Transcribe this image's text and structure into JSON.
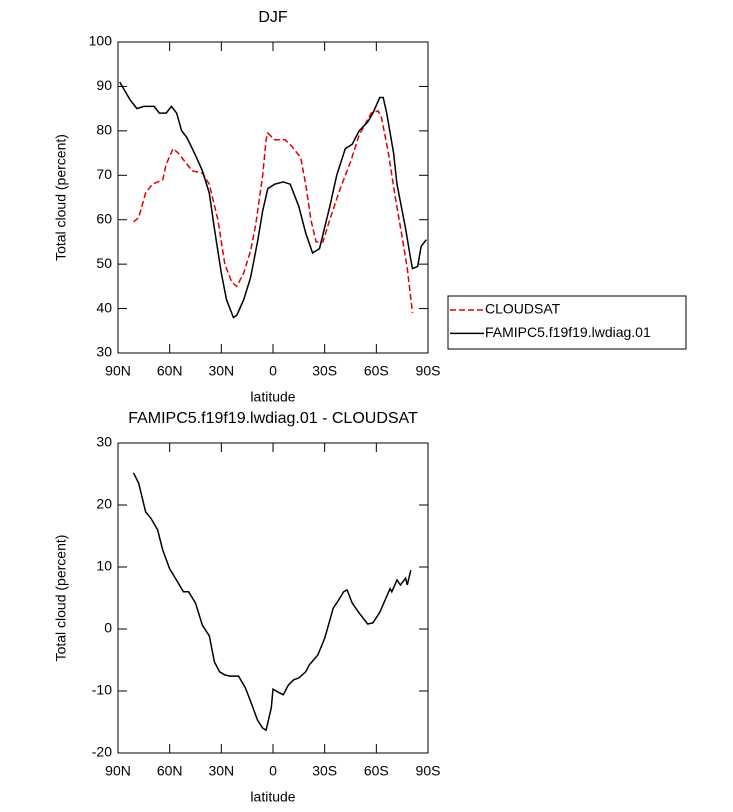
{
  "chart_data": [
    {
      "type": "line",
      "title": "DJF",
      "ylabel": "Total cloud (percent)",
      "xlabel": "latitude",
      "xlim": [
        90,
        -90
      ],
      "xticks": [
        {
          "value": 90,
          "label": "90N"
        },
        {
          "value": 60,
          "label": "60N"
        },
        {
          "value": 30,
          "label": "30N"
        },
        0,
        {
          "value": -30,
          "label": "30S"
        },
        {
          "value": -60,
          "label": "60S"
        },
        {
          "value": -90,
          "label": "90S"
        }
      ],
      "ylim": [
        30,
        100
      ],
      "yticks": [
        30,
        40,
        50,
        60,
        70,
        80,
        90,
        100
      ],
      "legend": "right",
      "series": [
        {
          "name": "CLOUDSAT",
          "color": "#e00000",
          "dash": true,
          "x": [
            81,
            78,
            74,
            70,
            64,
            62,
            58,
            55,
            51,
            47,
            41,
            37,
            32,
            28,
            24,
            21,
            17,
            13,
            10,
            6,
            4,
            3,
            -1,
            -7,
            -11,
            -16,
            -19,
            -22,
            -25,
            -29,
            -33,
            -39,
            -45,
            -50,
            -57,
            -61,
            -63,
            -67,
            -71,
            -75,
            -78,
            -81
          ],
          "values": [
            59.5,
            60.5,
            66,
            68,
            69,
            72.5,
            76,
            75,
            73,
            71,
            70.5,
            68,
            60,
            50,
            46,
            45,
            48,
            53,
            59,
            70,
            78,
            79.5,
            78,
            78,
            76.5,
            74,
            68,
            60,
            55,
            55,
            60,
            67,
            73,
            79,
            84,
            84.5,
            83,
            75,
            65,
            56,
            49,
            39
          ]
        },
        {
          "name": "FAMIPC5.f19f19.lwdiag.01",
          "color": "#000000",
          "dash": false,
          "x": [
            89,
            83,
            79,
            75,
            69,
            66,
            62,
            59,
            56,
            53,
            50,
            45,
            41,
            37,
            34,
            30,
            27,
            23,
            21,
            17,
            13,
            9,
            6,
            3,
            -1,
            -6,
            -10,
            -15,
            -19,
            -23,
            -27,
            -33,
            -37,
            -42,
            -46,
            -50,
            -55,
            -58,
            -62,
            -64,
            -66,
            -70,
            -72,
            -77,
            -80,
            -81,
            -84,
            -86,
            -89
          ],
          "values": [
            91,
            87,
            85,
            85.5,
            85.5,
            84,
            84,
            85.5,
            84,
            80,
            78.5,
            74.5,
            71,
            66,
            58,
            48,
            42,
            38,
            38.5,
            42,
            47,
            55,
            62,
            67,
            68,
            68.5,
            68,
            63,
            57,
            52.5,
            53.5,
            63,
            70,
            76,
            77,
            80,
            82,
            84,
            87.5,
            87.5,
            84,
            75,
            68,
            58,
            51,
            49,
            49.5,
            54,
            55.5
          ]
        }
      ]
    },
    {
      "type": "line",
      "title": "FAMIPC5.f19f19.lwdiag.01 - CLOUDSAT",
      "ylabel": "Total cloud (percent)",
      "xlabel": "latitude",
      "xlim": [
        90,
        -90
      ],
      "xticks": [
        {
          "value": 90,
          "label": "90N"
        },
        {
          "value": 60,
          "label": "60N"
        },
        {
          "value": 30,
          "label": "30N"
        },
        0,
        {
          "value": -30,
          "label": "30S"
        },
        {
          "value": -60,
          "label": "60S"
        },
        {
          "value": -90,
          "label": "90S"
        }
      ],
      "ylim": [
        -20,
        30
      ],
      "yticks": [
        -20,
        -10,
        0,
        10,
        20,
        30
      ],
      "series": [
        {
          "color": "#000000",
          "dash": false,
          "x": [
            81,
            78,
            74,
            71,
            67,
            64,
            60,
            55,
            52,
            49,
            45,
            41,
            37,
            34,
            31,
            28,
            25,
            20,
            16,
            12,
            9,
            6,
            4,
            1,
            0,
            -3,
            -6,
            -9,
            -12,
            -15,
            -19,
            -21,
            -26,
            -30,
            -35,
            -38,
            -41,
            -43,
            -46,
            -50,
            -55,
            -58,
            -62,
            -65,
            -68,
            -69,
            -72,
            -74,
            -77,
            -78,
            -80
          ],
          "values": [
            25.2,
            23.5,
            18.9,
            17.9,
            16,
            12.7,
            9.7,
            7.4,
            6,
            6,
            4.2,
            0.6,
            -1.1,
            -5.3,
            -6.9,
            -7.4,
            -7.6,
            -7.6,
            -9.5,
            -12.4,
            -14.7,
            -16,
            -16.3,
            -12.7,
            -9.7,
            -10.2,
            -10.6,
            -9,
            -8.2,
            -7.9,
            -6.9,
            -5.8,
            -4.2,
            -1.5,
            3.4,
            4.6,
            6,
            6.3,
            4.2,
            2.6,
            0.8,
            1,
            2.7,
            4.6,
            6.5,
            6,
            7.9,
            7.1,
            8.2,
            7.1,
            9.5
          ]
        }
      ]
    }
  ]
}
